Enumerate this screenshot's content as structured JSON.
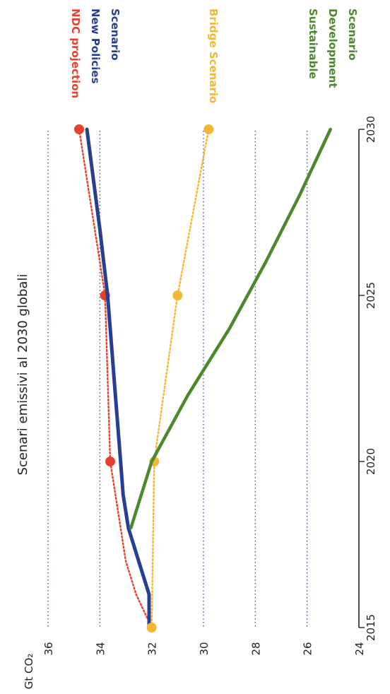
{
  "chart_data": {
    "type": "line",
    "orientation": "rotated-90-clockwise",
    "title": "Scenari emissivi al 2030 globali",
    "ylabel": "Gt CO₂",
    "xlim": [
      2015,
      2030
    ],
    "ylim": [
      24,
      36
    ],
    "x_ticks": [
      "2015",
      "2020",
      "2025",
      "2030"
    ],
    "y_ticks": [
      "24",
      "26",
      "28",
      "30",
      "32",
      "34",
      "36"
    ],
    "grid": "horizontal dotted at 26, 28, 30, 34, 36",
    "series": [
      {
        "name": "NDC projection",
        "color": "#e8402c",
        "style": "dotted-with-markers",
        "x": [
          2015,
          2016,
          2017,
          2018,
          2020,
          2025,
          2030
        ],
        "y": [
          32.0,
          32.6,
          33.0,
          33.2,
          33.6,
          33.8,
          34.8
        ],
        "markers": [
          2020,
          2025,
          2030
        ]
      },
      {
        "name": "New Policies Scenario",
        "name_lines": [
          "New Policies",
          "Scenario"
        ],
        "color": "#263f93",
        "style": "solid",
        "x": [
          2015,
          2016,
          2017,
          2018,
          2019,
          2020,
          2022,
          2024,
          2025,
          2027,
          2030
        ],
        "y": [
          32.1,
          32.1,
          32.5,
          32.9,
          33.1,
          33.2,
          33.4,
          33.6,
          33.7,
          34.0,
          34.5
        ]
      },
      {
        "name": "Bridge Scenario",
        "color": "#f5b731",
        "style": "dotted-with-markers",
        "x": [
          2015,
          2020,
          2025,
          2030
        ],
        "y": [
          32.0,
          31.9,
          31.0,
          29.8
        ],
        "markers": [
          2015,
          2020,
          2025,
          2030
        ]
      },
      {
        "name": "Sustainable Development Scenario",
        "name_lines": [
          "Sustainable",
          "Development",
          "Scenario"
        ],
        "color": "#4a8a2c",
        "style": "solid",
        "x": [
          2018,
          2020,
          2022,
          2024,
          2026,
          2028,
          2030
        ],
        "y": [
          32.8,
          32.0,
          30.6,
          29.0,
          27.6,
          26.3,
          25.1
        ]
      }
    ]
  }
}
